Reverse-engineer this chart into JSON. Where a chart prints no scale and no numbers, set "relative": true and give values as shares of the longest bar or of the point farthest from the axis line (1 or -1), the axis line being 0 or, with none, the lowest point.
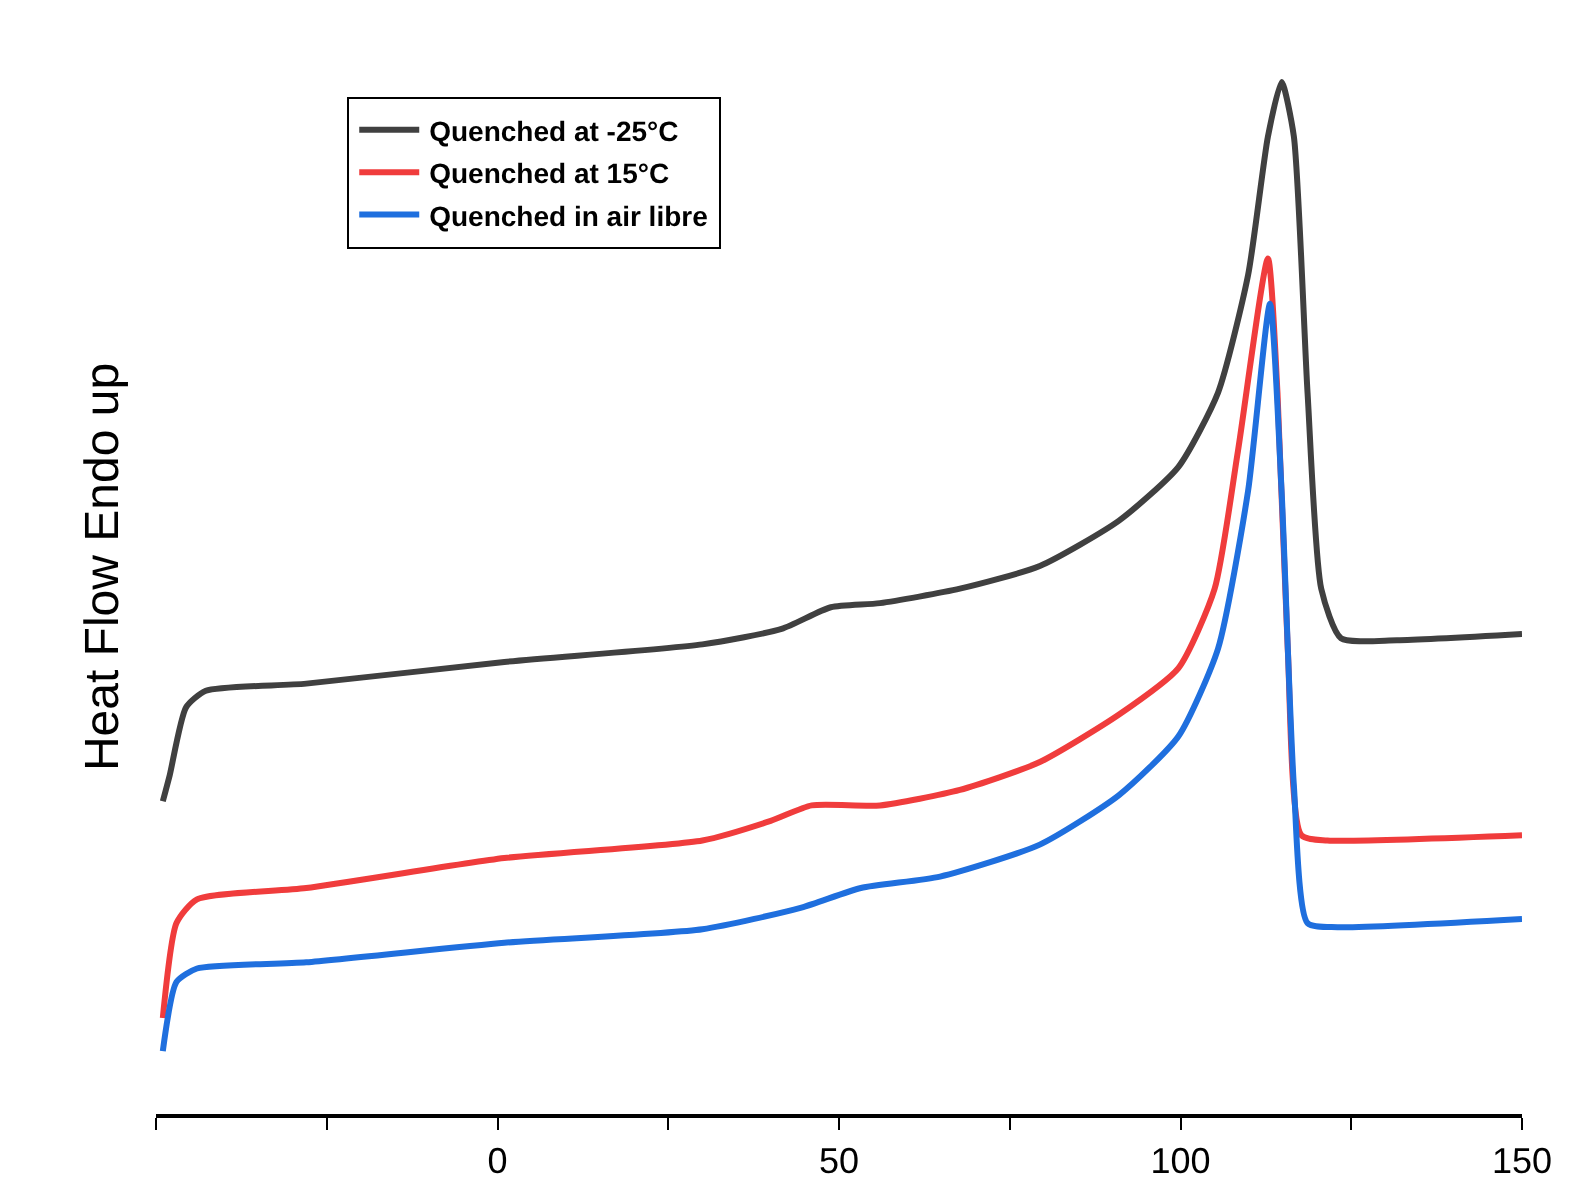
{
  "chart_data": {
    "type": "line",
    "relative": true,
    "ylabel": "Heat Flow Endo up",
    "xlim": [
      -50,
      150
    ],
    "xticks": [
      {
        "value": -50,
        "label": null
      },
      {
        "value": -25,
        "label": null
      },
      0,
      {
        "value": 25,
        "label": null
      },
      50,
      {
        "value": 75,
        "label": null
      },
      100,
      {
        "value": 125,
        "label": null
      },
      150
    ],
    "legend": "top left",
    "series": [
      {
        "name": "Quenched at -25°C",
        "color": "#404040",
        "x": [
          -49,
          -48,
          -45.6,
          -42.7,
          -28,
          1,
          30,
          41.6,
          48.8,
          56,
          67.7,
          79.4,
          91,
          99.7,
          105.5,
          109.9,
          112.8,
          114.8,
          116.6,
          118.6,
          120.6,
          123.5,
          131.7,
          150
        ],
        "values": [
          0.303,
          0.328,
          0.394,
          0.41,
          0.417,
          0.438,
          0.455,
          0.47,
          0.491,
          0.495,
          0.509,
          0.531,
          0.575,
          0.627,
          0.699,
          0.813,
          0.947,
          1.0,
          0.947,
          0.699,
          0.509,
          0.461,
          0.459,
          0.465
        ]
      },
      {
        "name": "Quenched at 15°C",
        "color": "#f03c3c",
        "x": [
          -49,
          -47,
          -44,
          -28,
          1,
          30,
          40,
          46,
          56,
          67.7,
          79.4,
          91,
          99.7,
          105,
          108.4,
          112.8,
          114.2,
          115.7,
          117.7,
          121.5,
          150
        ],
        "values": [
          0.093,
          0.185,
          0.208,
          0.219,
          0.248,
          0.265,
          0.284,
          0.299,
          0.299,
          0.314,
          0.341,
          0.387,
          0.432,
          0.509,
          0.642,
          0.829,
          0.699,
          0.451,
          0.27,
          0.265,
          0.27
        ]
      },
      {
        "name": "Quenched in air libre",
        "color": "#1f6fde",
        "x": [
          -49,
          -47,
          -44,
          -28,
          1,
          30,
          44.5,
          53.2,
          64.8,
          79.4,
          91,
          99.7,
          105.5,
          109.9,
          113.1,
          114.8,
          116.6,
          118.6,
          123,
          150
        ],
        "values": [
          0.061,
          0.128,
          0.141,
          0.147,
          0.166,
          0.179,
          0.2,
          0.219,
          0.23,
          0.261,
          0.309,
          0.366,
          0.451,
          0.604,
          0.785,
          0.604,
          0.318,
          0.185,
          0.181,
          0.189
        ]
      }
    ]
  }
}
